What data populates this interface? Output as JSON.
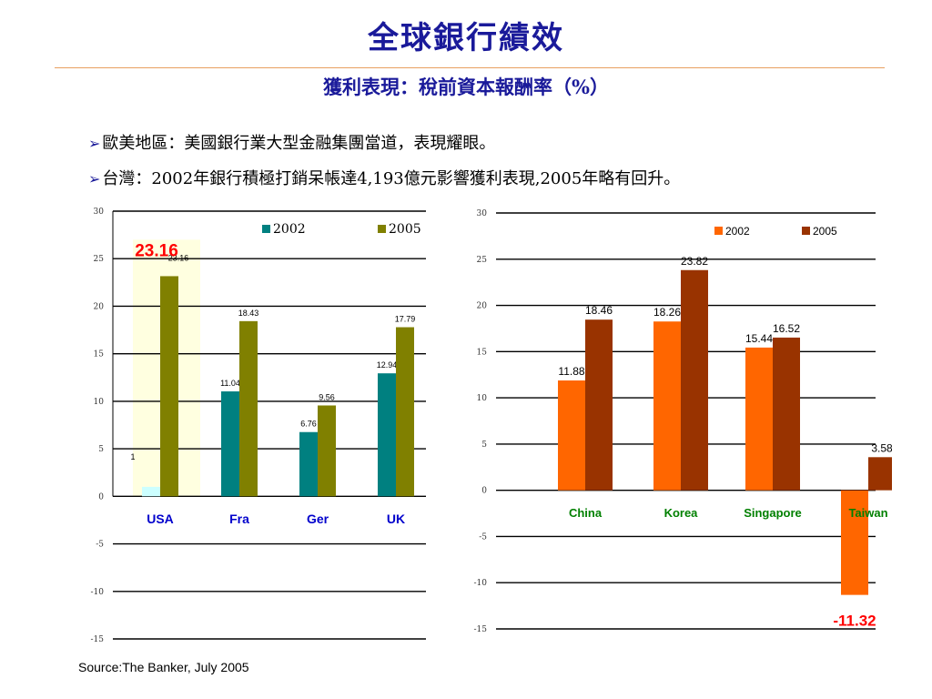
{
  "header": {
    "title": "全球銀行績效",
    "subtitle": "獲利表現：稅前資本報酬率（%）"
  },
  "bullets": [
    {
      "arrow": "➢",
      "text": "歐美地區：美國銀行業大型金融集團當道，表現耀眼。"
    },
    {
      "arrow": "➢",
      "text": "台灣：2002年銀行積極打銷呆帳達4,193億元影響獲利表現,2005年略有回升。"
    }
  ],
  "chart_data": [
    {
      "type": "bar",
      "categories": [
        "USA",
        "Fra",
        "Ger",
        "UK"
      ],
      "series": [
        {
          "name": "2002",
          "values": [
            1,
            11.04,
            6.76,
            12.94
          ],
          "labels": [
            "1",
            "11.04",
            "6.76",
            "12.94"
          ]
        },
        {
          "name": "2005",
          "values": [
            23.16,
            18.43,
            9.56,
            17.79
          ],
          "labels": [
            "23.16",
            "18.43",
            "9.56",
            "17.79"
          ]
        }
      ],
      "highlight_label": "23.16",
      "ylim": [
        -15,
        30
      ],
      "yticks": [
        "30",
        "25",
        "20",
        "15",
        "10",
        "5",
        "0",
        "-5",
        "-10",
        "-15"
      ],
      "colors": {
        "2002": "#008080",
        "2005": "#808000",
        "category": "#0000cc",
        "highlight": "#ff0000",
        "usa2002": "#ccffff",
        "usaband": "#ffffe0"
      },
      "legend": "top-right"
    },
    {
      "type": "bar",
      "categories": [
        "China",
        "Korea",
        "Singapore",
        "Taiwan"
      ],
      "series": [
        {
          "name": "2002",
          "values": [
            11.88,
            18.26,
            15.44,
            -11.32
          ],
          "labels": [
            "11.88",
            "18.26",
            "15.44",
            "-11.32"
          ]
        },
        {
          "name": "2005",
          "values": [
            18.46,
            23.82,
            16.52,
            3.58
          ],
          "labels": [
            "18.46",
            "23.82",
            "16.52",
            "3.58"
          ]
        }
      ],
      "highlight_label": "-11.32",
      "ylim": [
        -15,
        30
      ],
      "yticks": [
        "30",
        "25",
        "20",
        "15",
        "10",
        "5",
        "0",
        "-5",
        "-10",
        "-15"
      ],
      "colors": {
        "2002": "#ff6600",
        "2005": "#993300",
        "category": "#008000",
        "highlight": "#ff0000"
      },
      "legend": "top-right"
    }
  ],
  "source": "Source:The Banker, July 2005"
}
